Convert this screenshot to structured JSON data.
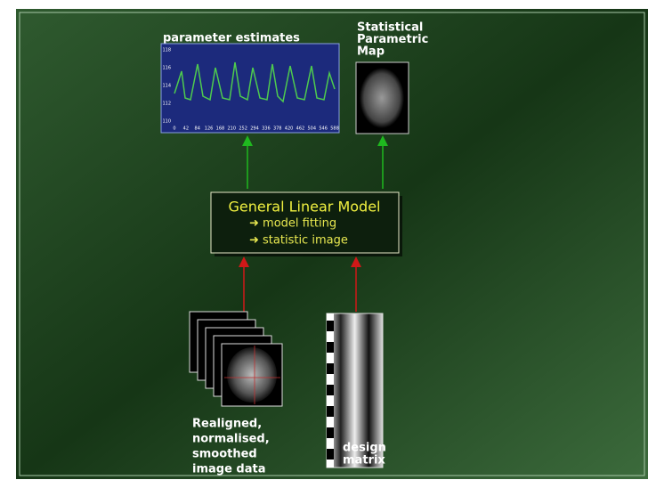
{
  "parameter_estimates": {
    "title": "parameter estimates",
    "plot": {
      "xticks": [
        "0",
        "42",
        "84",
        "126",
        "168",
        "210",
        "252",
        "294",
        "336",
        "378",
        "420",
        "462",
        "504",
        "546",
        "588"
      ],
      "yticks": [
        "118",
        "116",
        "114",
        "112",
        "110"
      ]
    }
  },
  "spm": {
    "title_lines": [
      "Statistical",
      "Parametric",
      "Map"
    ]
  },
  "glm": {
    "title": "General Linear Model",
    "items": [
      "➜ model fitting",
      "➜ statistic image"
    ]
  },
  "image_data": {
    "label_lines": [
      "Realigned,",
      "normalised,",
      "smoothed",
      "image data"
    ]
  },
  "design_matrix": {
    "label_lines": [
      "design",
      "matrix"
    ]
  }
}
